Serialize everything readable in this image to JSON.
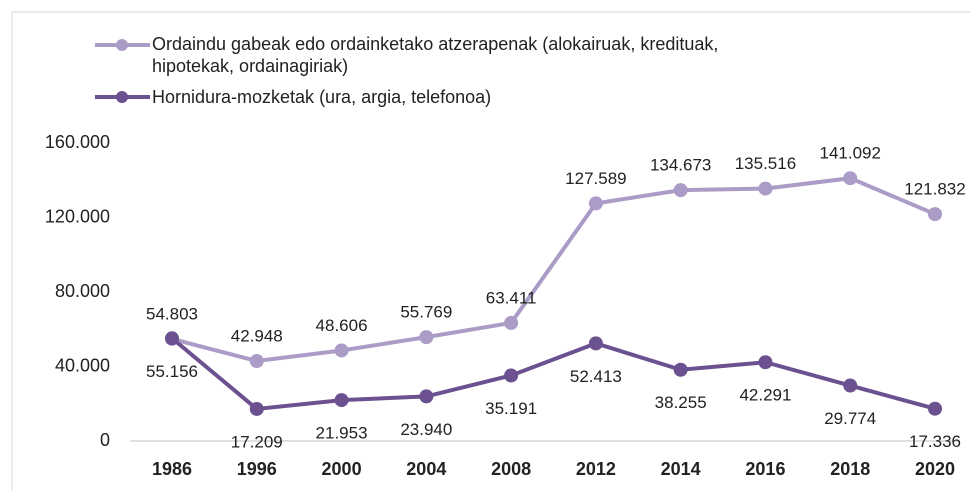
{
  "chart_data": {
    "type": "line",
    "categories": [
      "1986",
      "1996",
      "2000",
      "2004",
      "2008",
      "2012",
      "2014",
      "2016",
      "2018",
      "2020"
    ],
    "series": [
      {
        "name": "Ordaindu gabeak edo ordainketako atzerapenak (alokairuak, kredituak, hipotekak, ordainagiriak)",
        "color": "#aa9cc6",
        "values": [
          54803,
          42948,
          48606,
          55769,
          63411,
          127589,
          134673,
          135516,
          141092,
          121832
        ],
        "value_labels": [
          "54.803",
          "42.948",
          "48.606",
          "55.769",
          "63.411",
          "127.589",
          "134.673",
          "135.516",
          "141.092",
          "121.832"
        ]
      },
      {
        "name": "Hornidura-mozketak (ura, argia, telefonoa)",
        "color": "#6b5190",
        "values": [
          55156,
          17209,
          21953,
          23940,
          35191,
          52413,
          38255,
          42291,
          29774,
          17336
        ],
        "value_labels": [
          "55.156",
          "17.209",
          "21.953",
          "23.940",
          "35.191",
          "52.413",
          "38.255",
          "42.291",
          "29.774",
          "17.336"
        ]
      }
    ],
    "ylim": [
      0,
      160000
    ],
    "yticks": [
      0,
      {
        "value": 40000,
        "label": "40.000"
      },
      {
        "value": 80000,
        "label": "80.000"
      },
      {
        "value": 120000,
        "label": "120.000"
      },
      {
        "value": 160000,
        "label": "160.000"
      }
    ],
    "grid": false
  }
}
